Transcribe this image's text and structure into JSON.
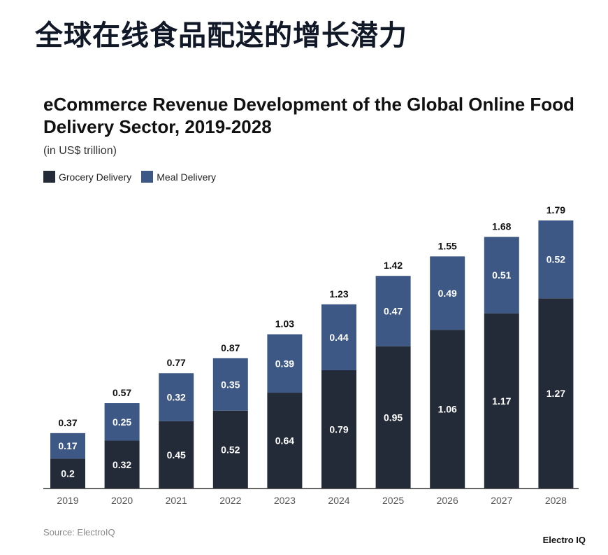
{
  "headline": "全球在线食品配送的增长潜力",
  "source": "Source: ElectroIQ",
  "brand": "Electro IQ",
  "colors": {
    "grocery": "#232a38",
    "meal": "#3e5886",
    "axis": "#333333"
  },
  "chart_data": {
    "type": "bar",
    "stacked": true,
    "title": "eCommerce Revenue Development of the Global Online Food Delivery Sector, 2019-2028",
    "subtitle": "(in US$ trillion)",
    "categories": [
      "2019",
      "2020",
      "2021",
      "2022",
      "2023",
      "2024",
      "2025",
      "2026",
      "2027",
      "2028"
    ],
    "series": [
      {
        "name": "Grocery Delivery",
        "values": [
          0.2,
          0.32,
          0.45,
          0.52,
          0.64,
          0.79,
          0.95,
          1.06,
          1.17,
          1.27
        ]
      },
      {
        "name": "Meal Delivery",
        "values": [
          0.17,
          0.25,
          0.32,
          0.35,
          0.39,
          0.44,
          0.47,
          0.49,
          0.51,
          0.52
        ]
      }
    ],
    "totals": [
      "0.37",
      "0.57",
      "0.77",
      "0.87",
      "1.03",
      "1.23",
      "1.42",
      "1.55",
      "1.68",
      "1.79"
    ],
    "ylim": [
      0,
      1.79
    ],
    "grid": false,
    "legend": "top-left"
  }
}
